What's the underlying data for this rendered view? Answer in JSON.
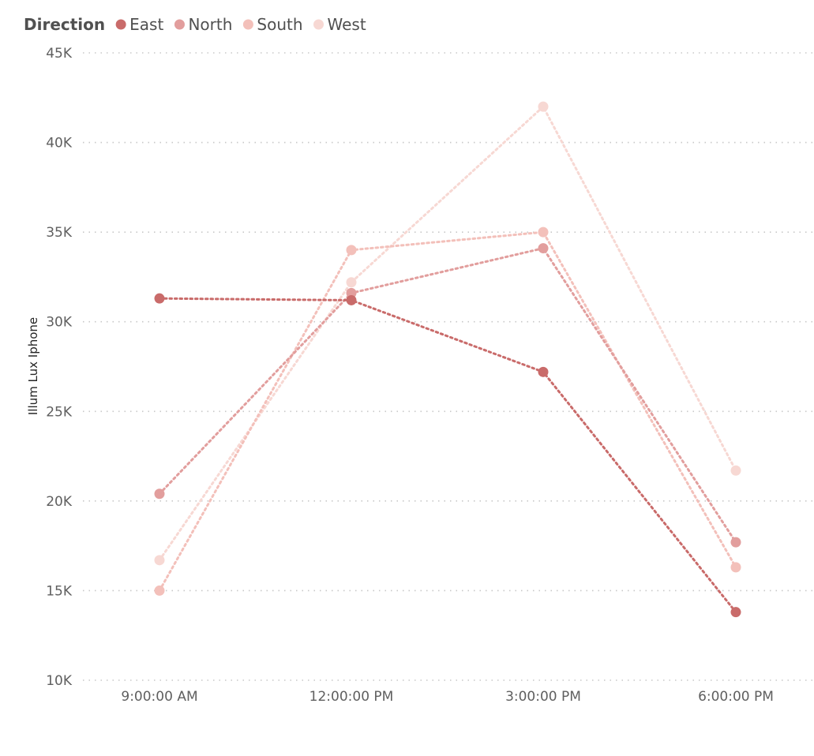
{
  "chart_data": {
    "type": "line",
    "legend": {
      "title": "Direction",
      "placement": "top-left"
    },
    "x": [
      "9:00:00 AM",
      "12:00:00 PM",
      "3:00:00 PM",
      "6:00:00 PM"
    ],
    "ylabel": "Illum Lux Iphone",
    "xlabel": "",
    "ylim": [
      10000,
      45000
    ],
    "yticks": [
      {
        "value": 10000,
        "label": "10K"
      },
      {
        "value": 15000,
        "label": "15K"
      },
      {
        "value": 20000,
        "label": "20K"
      },
      {
        "value": 25000,
        "label": "25K"
      },
      {
        "value": 30000,
        "label": "30K"
      },
      {
        "value": 35000,
        "label": "35K"
      },
      {
        "value": 40000,
        "label": "40K"
      },
      {
        "value": 45000,
        "label": "45K"
      }
    ],
    "grid": true,
    "series": [
      {
        "name": "West",
        "color": "#f7d8d3",
        "values": [
          16700,
          32200,
          42000,
          21700
        ]
      },
      {
        "name": "South",
        "color": "#f3c0ba",
        "values": [
          15000,
          34000,
          35000,
          16300
        ]
      },
      {
        "name": "North",
        "color": "#e29e9d",
        "values": [
          20400,
          31600,
          34100,
          17700
        ]
      },
      {
        "name": "East",
        "color": "#c96b6a",
        "values": [
          31300,
          31200,
          27200,
          13800
        ]
      }
    ]
  }
}
